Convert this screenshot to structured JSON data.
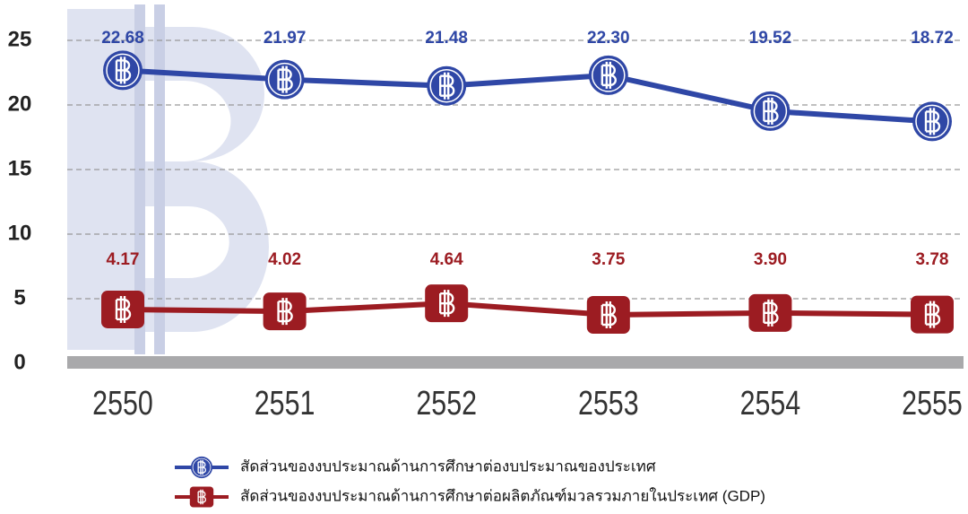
{
  "chart_data": {
    "type": "line",
    "categories": [
      "2550",
      "2551",
      "2552",
      "2553",
      "2554",
      "2555"
    ],
    "series": [
      {
        "name": "สัดส่วนของงบประมาณด้านการศึกษาต่องบประมาณของประเทศ",
        "color": "#2f47a6",
        "values": [
          22.68,
          21.97,
          21.48,
          22.3,
          19.52,
          18.72
        ],
        "value_labels": [
          "22.68",
          "21.97",
          "21.48",
          "22.30",
          "19.52",
          "18.72"
        ]
      },
      {
        "name": "สัดส่วนของงบประมาณด้านการศึกษาต่อผลิตภัณฑ์มวลรวมภายในประเทศ (GDP)",
        "color": "#9c1c22",
        "values": [
          4.17,
          4.02,
          4.64,
          3.75,
          3.9,
          3.78
        ],
        "value_labels": [
          "4.17",
          "4.02",
          "4.64",
          "3.75",
          "3.90",
          "3.78"
        ]
      }
    ],
    "ylim": [
      0,
      25
    ],
    "yticks": [
      0,
      5,
      10,
      15,
      20,
      25
    ],
    "grid": true
  }
}
